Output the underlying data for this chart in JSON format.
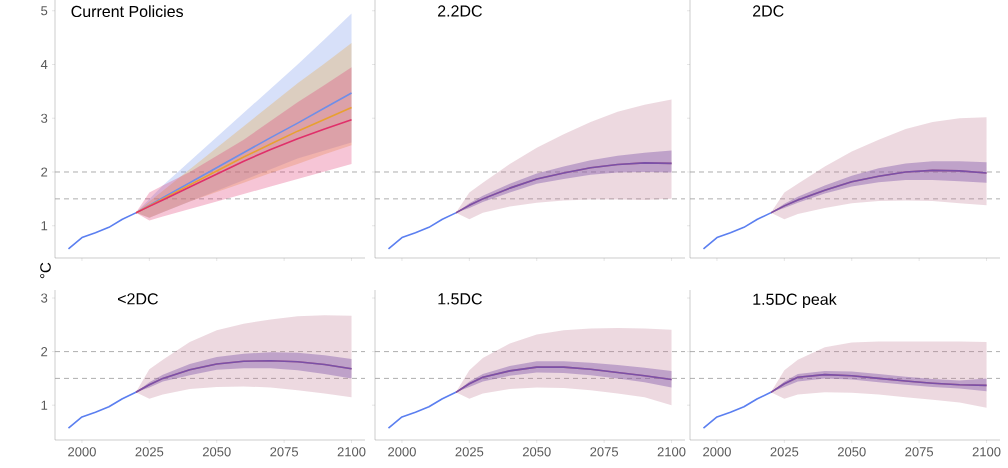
{
  "chart_data": [
    {
      "type": "line",
      "title": "Current Policies",
      "ylabel": "°C",
      "xlim": [
        1990,
        2105
      ],
      "ylim": [
        0.4,
        5.2
      ],
      "xticks": [
        2000,
        2025,
        2050,
        2075,
        2100
      ],
      "yticks": [
        1,
        2,
        3,
        4,
        5
      ],
      "tick_labels": "y",
      "ref_lines": [
        {
          "axis": "y",
          "value": 2,
          "color": "#999999",
          "line_style": "dashed"
        },
        {
          "axis": "y",
          "value": 1.5,
          "color": "#999999",
          "line_style": "dashed"
        }
      ],
      "series": [
        {
          "color": "#6f8ee8",
          "x": [
            2020,
            2025,
            2030,
            2040,
            2050,
            2060,
            2070,
            2080,
            2090,
            2100
          ],
          "values": [
            1.24,
            1.38,
            1.52,
            1.8,
            2.08,
            2.36,
            2.64,
            2.91,
            3.19,
            3.47
          ],
          "upper": [
            1.24,
            1.5,
            1.75,
            2.2,
            2.65,
            3.1,
            3.55,
            4.0,
            4.47,
            4.95
          ],
          "lower": [
            1.24,
            1.15,
            1.25,
            1.45,
            1.65,
            1.85,
            2.05,
            2.25,
            2.4,
            2.55
          ]
        },
        {
          "color": "#e8a030",
          "x": [
            2020,
            2025,
            2030,
            2040,
            2050,
            2060,
            2070,
            2080,
            2090,
            2100
          ],
          "values": [
            1.24,
            1.37,
            1.5,
            1.76,
            2.02,
            2.28,
            2.52,
            2.76,
            2.98,
            3.2
          ],
          "upper": [
            1.24,
            1.45,
            1.65,
            2.05,
            2.45,
            2.85,
            3.25,
            3.65,
            4.02,
            4.4
          ],
          "lower": [
            1.24,
            1.15,
            1.25,
            1.45,
            1.63,
            1.8,
            1.98,
            2.15,
            2.33,
            2.5
          ]
        },
        {
          "color": "#e0306a",
          "x": [
            2020,
            2025,
            2030,
            2040,
            2050,
            2060,
            2070,
            2080,
            2090,
            2100
          ],
          "values": [
            1.24,
            1.36,
            1.48,
            1.72,
            1.96,
            2.2,
            2.42,
            2.62,
            2.8,
            2.97
          ],
          "upper": [
            1.24,
            1.62,
            1.75,
            2.0,
            2.3,
            2.6,
            2.95,
            3.3,
            3.62,
            3.95
          ],
          "lower": [
            1.24,
            1.1,
            1.17,
            1.31,
            1.45,
            1.59,
            1.73,
            1.87,
            2.01,
            2.15
          ]
        },
        {
          "color": "#5b7ff0",
          "x": [
            1995,
            2000,
            2005,
            2010,
            2015,
            2020
          ],
          "values": [
            0.57,
            0.78,
            0.87,
            0.97,
            1.12,
            1.24
          ]
        }
      ]
    },
    {
      "type": "line",
      "title": "2.2DC",
      "xlim": [
        1990,
        2105
      ],
      "ylim": [
        0.4,
        5.2
      ],
      "xticks": [
        2000,
        2025,
        2050,
        2075,
        2100
      ],
      "yticks": [
        1,
        2,
        3,
        4,
        5
      ],
      "tick_labels": false,
      "ref_lines": [
        {
          "axis": "y",
          "value": 2,
          "color": "#999999",
          "line_style": "dashed"
        },
        {
          "axis": "y",
          "value": 1.5,
          "color": "#999999",
          "line_style": "dashed"
        }
      ],
      "series": [
        {
          "color": "#c07890",
          "x": [
            2020,
            2025,
            2030,
            2040,
            2050,
            2060,
            2070,
            2080,
            2090,
            2100
          ],
          "values": [
            1.24,
            1.38,
            1.5,
            1.7,
            1.87,
            1.98,
            2.08,
            2.14,
            2.17,
            2.16
          ],
          "upper": [
            1.24,
            1.62,
            1.8,
            2.15,
            2.45,
            2.7,
            2.93,
            3.12,
            3.25,
            3.35
          ],
          "lower": [
            1.24,
            1.12,
            1.24,
            1.36,
            1.43,
            1.47,
            1.49,
            1.49,
            1.48,
            1.5
          ]
        },
        {
          "color": "#7a50a8",
          "x": [
            2020,
            2025,
            2030,
            2040,
            2050,
            2060,
            2070,
            2080,
            2090,
            2100
          ],
          "values": [
            1.24,
            1.38,
            1.5,
            1.7,
            1.87,
            1.98,
            2.08,
            2.14,
            2.17,
            2.16
          ],
          "upper": [
            1.24,
            1.42,
            1.56,
            1.78,
            1.97,
            2.1,
            2.22,
            2.3,
            2.36,
            2.4
          ],
          "lower": [
            1.24,
            1.33,
            1.44,
            1.62,
            1.78,
            1.87,
            1.95,
            1.99,
            2.0,
            1.99
          ]
        },
        {
          "color": "#5b7ff0",
          "x": [
            1995,
            2000,
            2005,
            2010,
            2015,
            2020
          ],
          "values": [
            0.57,
            0.78,
            0.87,
            0.97,
            1.12,
            1.24
          ]
        }
      ]
    },
    {
      "type": "line",
      "title": "2DC",
      "xlim": [
        1990,
        2105
      ],
      "ylim": [
        0.4,
        5.2
      ],
      "xticks": [
        2000,
        2025,
        2050,
        2075,
        2100
      ],
      "yticks": [
        1,
        2,
        3,
        4,
        5
      ],
      "tick_labels": false,
      "ref_lines": [
        {
          "axis": "y",
          "value": 2,
          "color": "#999999",
          "line_style": "dashed"
        },
        {
          "axis": "y",
          "value": 1.5,
          "color": "#999999",
          "line_style": "dashed"
        }
      ],
      "series": [
        {
          "color": "#c07890",
          "x": [
            2020,
            2025,
            2030,
            2040,
            2050,
            2060,
            2070,
            2080,
            2090,
            2100
          ],
          "values": [
            1.24,
            1.37,
            1.48,
            1.66,
            1.82,
            1.92,
            2.0,
            2.03,
            2.02,
            1.98
          ],
          "upper": [
            1.24,
            1.62,
            1.78,
            2.1,
            2.38,
            2.6,
            2.8,
            2.93,
            3.0,
            3.02
          ],
          "lower": [
            1.24,
            1.12,
            1.22,
            1.33,
            1.42,
            1.46,
            1.47,
            1.46,
            1.42,
            1.38
          ]
        },
        {
          "color": "#7a50a8",
          "x": [
            2020,
            2025,
            2030,
            2040,
            2050,
            2060,
            2070,
            2080,
            2090,
            2100
          ],
          "values": [
            1.24,
            1.37,
            1.48,
            1.66,
            1.82,
            1.92,
            2.0,
            2.03,
            2.02,
            1.98
          ],
          "upper": [
            1.24,
            1.41,
            1.54,
            1.75,
            1.93,
            2.07,
            2.16,
            2.2,
            2.2,
            2.18
          ],
          "lower": [
            1.24,
            1.33,
            1.43,
            1.6,
            1.73,
            1.81,
            1.85,
            1.85,
            1.83,
            1.8
          ]
        },
        {
          "color": "#5b7ff0",
          "x": [
            1995,
            2000,
            2005,
            2010,
            2015,
            2020
          ],
          "values": [
            0.57,
            0.78,
            0.87,
            0.97,
            1.12,
            1.24
          ]
        }
      ]
    },
    {
      "type": "line",
      "title": "<2DC",
      "xlim": [
        1990,
        2105
      ],
      "ylim": [
        0.35,
        3.15
      ],
      "xticks": [
        2000,
        2025,
        2050,
        2075,
        2100
      ],
      "yticks": [
        1,
        2,
        3
      ],
      "ref_lines": [
        {
          "axis": "y",
          "value": 2,
          "color": "#999999",
          "line_style": "dashed"
        },
        {
          "axis": "y",
          "value": 1.5,
          "color": "#999999",
          "line_style": "dashed"
        }
      ],
      "series": [
        {
          "color": "#c07890",
          "x": [
            2020,
            2025,
            2030,
            2040,
            2050,
            2060,
            2070,
            2080,
            2090,
            2100
          ],
          "values": [
            1.24,
            1.38,
            1.5,
            1.66,
            1.77,
            1.82,
            1.83,
            1.81,
            1.76,
            1.68
          ],
          "upper": [
            1.24,
            1.67,
            1.85,
            2.18,
            2.4,
            2.52,
            2.6,
            2.66,
            2.68,
            2.67
          ],
          "lower": [
            1.24,
            1.12,
            1.2,
            1.3,
            1.34,
            1.35,
            1.33,
            1.28,
            1.22,
            1.15
          ]
        },
        {
          "color": "#7a50a8",
          "x": [
            2020,
            2025,
            2030,
            2040,
            2050,
            2060,
            2070,
            2080,
            2090,
            2100
          ],
          "values": [
            1.24,
            1.38,
            1.5,
            1.66,
            1.77,
            1.82,
            1.83,
            1.81,
            1.76,
            1.68
          ],
          "upper": [
            1.24,
            1.43,
            1.57,
            1.77,
            1.9,
            1.96,
            1.99,
            1.98,
            1.93,
            1.86
          ],
          "lower": [
            1.24,
            1.33,
            1.44,
            1.56,
            1.66,
            1.69,
            1.69,
            1.65,
            1.58,
            1.5
          ]
        },
        {
          "color": "#5b7ff0",
          "x": [
            1995,
            2000,
            2005,
            2010,
            2015,
            2020
          ],
          "values": [
            0.57,
            0.78,
            0.87,
            0.97,
            1.12,
            1.24
          ]
        }
      ]
    },
    {
      "type": "line",
      "title": "1.5DC",
      "xlim": [
        1990,
        2105
      ],
      "ylim": [
        0.35,
        3.15
      ],
      "xticks": [
        2000,
        2025,
        2050,
        2075,
        2100
      ],
      "yticks": [
        1,
        2,
        3
      ],
      "tick_labels": "x",
      "ref_lines": [
        {
          "axis": "y",
          "value": 2,
          "color": "#999999",
          "line_style": "dashed"
        },
        {
          "axis": "y",
          "value": 1.5,
          "color": "#999999",
          "line_style": "dashed"
        }
      ],
      "series": [
        {
          "color": "#c07890",
          "x": [
            2020,
            2025,
            2030,
            2040,
            2050,
            2060,
            2070,
            2080,
            2090,
            2100
          ],
          "values": [
            1.24,
            1.4,
            1.52,
            1.64,
            1.71,
            1.71,
            1.67,
            1.61,
            1.55,
            1.48
          ],
          "upper": [
            1.24,
            1.65,
            1.88,
            2.15,
            2.32,
            2.4,
            2.43,
            2.44,
            2.43,
            2.41
          ],
          "lower": [
            1.24,
            1.12,
            1.22,
            1.3,
            1.33,
            1.32,
            1.28,
            1.22,
            1.15,
            1.0
          ]
        },
        {
          "color": "#7a50a8",
          "x": [
            2020,
            2025,
            2030,
            2040,
            2050,
            2060,
            2070,
            2080,
            2090,
            2100
          ],
          "values": [
            1.24,
            1.4,
            1.52,
            1.64,
            1.71,
            1.71,
            1.67,
            1.61,
            1.55,
            1.48
          ],
          "upper": [
            1.24,
            1.44,
            1.58,
            1.73,
            1.82,
            1.82,
            1.79,
            1.75,
            1.7,
            1.64
          ],
          "lower": [
            1.24,
            1.34,
            1.44,
            1.55,
            1.61,
            1.6,
            1.56,
            1.5,
            1.43,
            1.33
          ]
        },
        {
          "color": "#5b7ff0",
          "x": [
            1995,
            2000,
            2005,
            2010,
            2015,
            2020
          ],
          "values": [
            0.57,
            0.78,
            0.87,
            0.97,
            1.12,
            1.24
          ]
        }
      ]
    },
    {
      "type": "line",
      "title": "1.5DC peak",
      "xlim": [
        1990,
        2105
      ],
      "ylim": [
        0.35,
        3.15
      ],
      "xticks": [
        2000,
        2025,
        2050,
        2075,
        2100
      ],
      "yticks": [
        1,
        2,
        3
      ],
      "tick_labels": "x",
      "ref_lines": [
        {
          "axis": "y",
          "value": 2,
          "color": "#999999",
          "line_style": "dashed"
        },
        {
          "axis": "y",
          "value": 1.5,
          "color": "#999999",
          "line_style": "dashed"
        }
      ],
      "series": [
        {
          "color": "#c07890",
          "x": [
            2020,
            2025,
            2030,
            2040,
            2050,
            2060,
            2070,
            2080,
            2090,
            2100
          ],
          "values": [
            1.24,
            1.4,
            1.52,
            1.57,
            1.55,
            1.5,
            1.45,
            1.41,
            1.38,
            1.37
          ],
          "upper": [
            1.24,
            1.65,
            1.85,
            2.08,
            2.17,
            2.19,
            2.19,
            2.19,
            2.19,
            2.18
          ],
          "lower": [
            1.24,
            1.12,
            1.2,
            1.24,
            1.23,
            1.2,
            1.15,
            1.1,
            1.05,
            0.95
          ]
        },
        {
          "color": "#7a50a8",
          "x": [
            2020,
            2025,
            2030,
            2040,
            2050,
            2060,
            2070,
            2080,
            2090,
            2100
          ],
          "values": [
            1.24,
            1.4,
            1.52,
            1.57,
            1.55,
            1.5,
            1.45,
            1.41,
            1.38,
            1.37
          ],
          "upper": [
            1.24,
            1.44,
            1.58,
            1.64,
            1.63,
            1.58,
            1.53,
            1.49,
            1.46,
            1.5
          ],
          "lower": [
            1.24,
            1.34,
            1.44,
            1.5,
            1.48,
            1.43,
            1.38,
            1.34,
            1.31,
            1.26
          ]
        },
        {
          "color": "#5b7ff0",
          "x": [
            1995,
            2000,
            2005,
            2010,
            2015,
            2020
          ],
          "values": [
            0.57,
            0.78,
            0.87,
            0.97,
            1.12,
            1.24
          ]
        }
      ]
    }
  ]
}
